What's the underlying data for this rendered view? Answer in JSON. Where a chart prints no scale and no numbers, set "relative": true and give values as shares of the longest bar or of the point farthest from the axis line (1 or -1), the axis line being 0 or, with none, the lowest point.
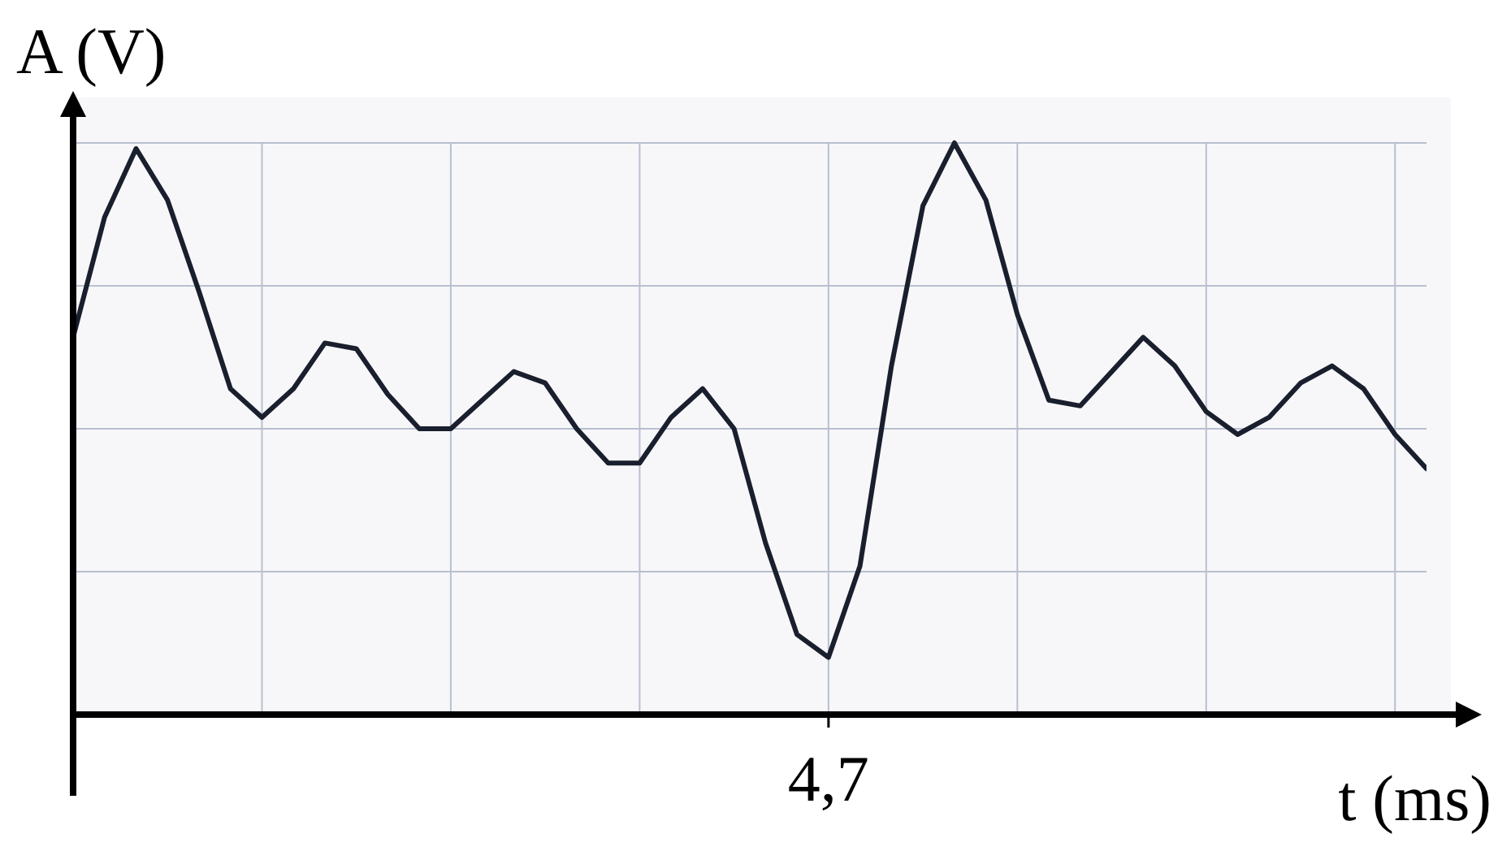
{
  "chart_data": {
    "type": "line",
    "relative": true,
    "xlabel": "t (ms)",
    "ylabel": "A (V)",
    "categories": [
      null,
      null,
      null,
      null,
      null,
      null,
      null,
      null,
      null,
      null,
      null,
      null,
      null,
      null,
      null,
      null,
      null,
      null,
      null,
      null,
      null,
      null,
      null,
      null,
      null,
      null,
      null,
      null,
      null,
      null,
      null,
      null,
      null,
      null,
      null,
      null,
      null,
      null,
      null,
      null,
      null,
      null,
      null,
      null
    ],
    "annotations": [
      "4,7"
    ],
    "grid": true,
    "marker": "none",
    "line_style": "solid",
    "series": [
      {
        "color": "#1a1f2e",
        "values": [
          0.66,
          0.87,
          0.99,
          0.9,
          0.74,
          0.57,
          0.52,
          0.57,
          0.65,
          0.64,
          0.56,
          0.5,
          0.5,
          0.55,
          0.6,
          0.58,
          0.5,
          0.44,
          0.44,
          0.52,
          0.57,
          0.5,
          0.3,
          0.14,
          0.1,
          0.26,
          0.61,
          0.89,
          1,
          0.9,
          0.7,
          0.55,
          0.54,
          0.6,
          0.66,
          0.61,
          0.53,
          0.49,
          0.52,
          0.58,
          0.61,
          0.57,
          0.49,
          0.43
        ]
      }
    ]
  }
}
